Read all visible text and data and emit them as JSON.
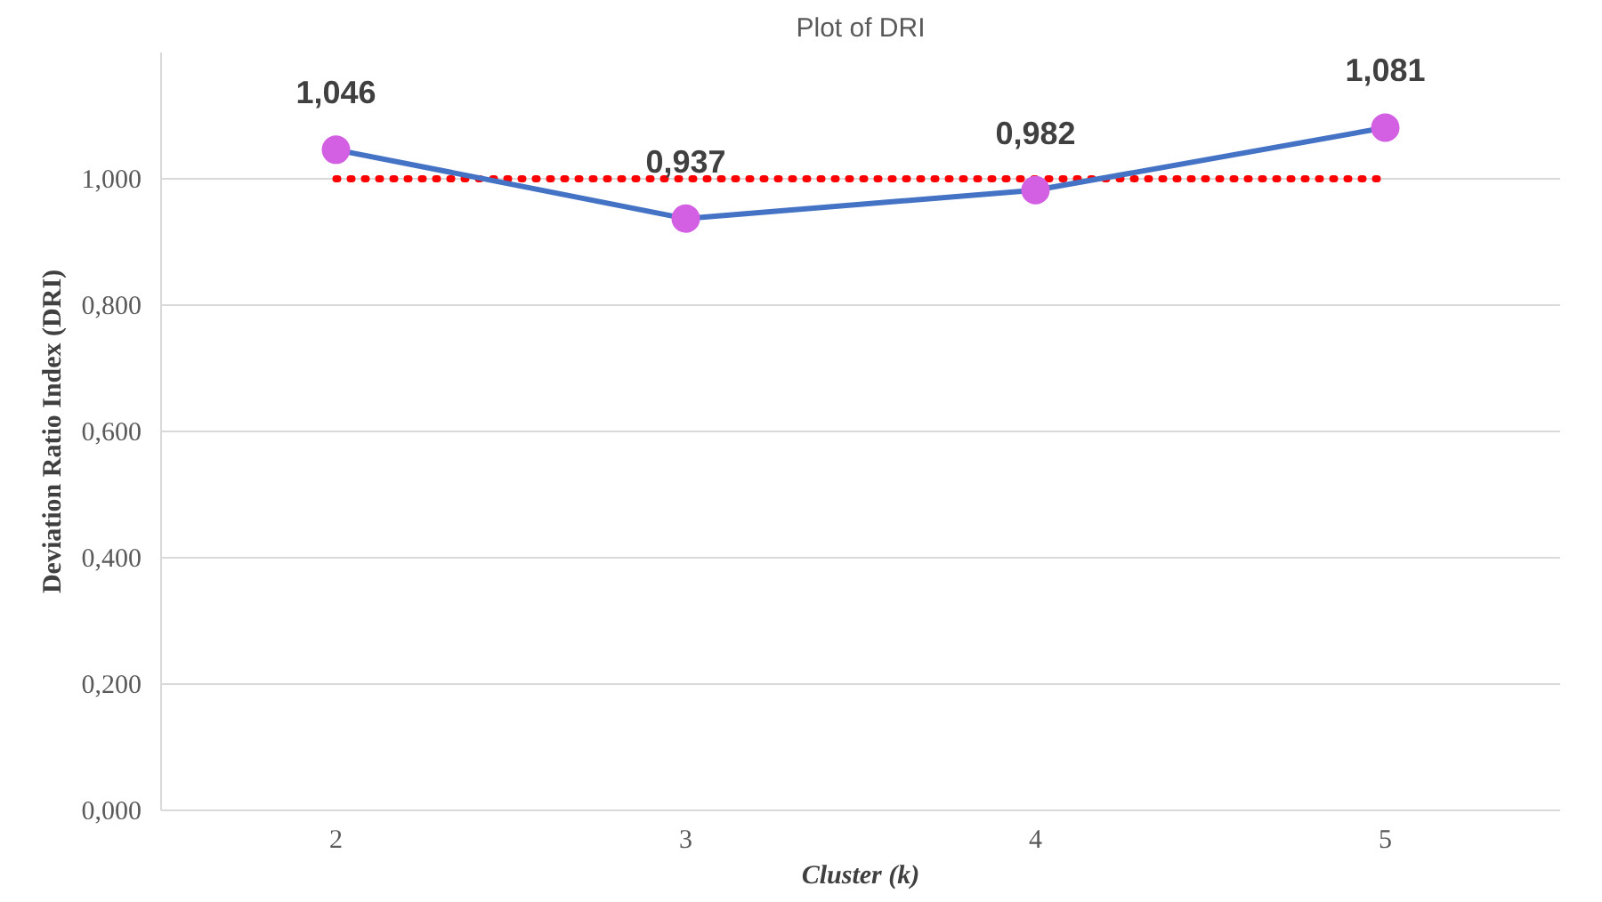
{
  "chart_data": {
    "type": "line",
    "title": "Plot of DRI",
    "xlabel": "Cluster (k)",
    "ylabel": "Deviation Ratio Index (DRI)",
    "categories": [
      "2",
      "3",
      "4",
      "5"
    ],
    "series": [
      {
        "color": "#4472c4",
        "colors": [
          "#d35fe3",
          "#d35fe3",
          "#d35fe3",
          "#d35fe3"
        ],
        "marker": "circle",
        "line_style": "solid",
        "values": [
          1.046,
          0.937,
          0.982,
          1.081
        ],
        "value_labels": [
          "1,046",
          "0,937",
          "0,982",
          "1,081"
        ]
      },
      {
        "color": "#ff0000",
        "marker": "none",
        "line_style": "dotted",
        "values": [
          1.0,
          1.0,
          1.0,
          1.0
        ]
      }
    ],
    "ylim": [
      0,
      1.2
    ],
    "yticks": [
      {
        "value": 0,
        "label": "0,000"
      },
      {
        "value": 0.2,
        "label": "0,200"
      },
      {
        "value": 0.4,
        "label": "0,400"
      },
      {
        "value": 0.6,
        "label": "0,600"
      },
      {
        "value": 0.8,
        "label": "0,800"
      },
      {
        "value": 1.0,
        "label": "1,000"
      }
    ],
    "grid": "y"
  }
}
